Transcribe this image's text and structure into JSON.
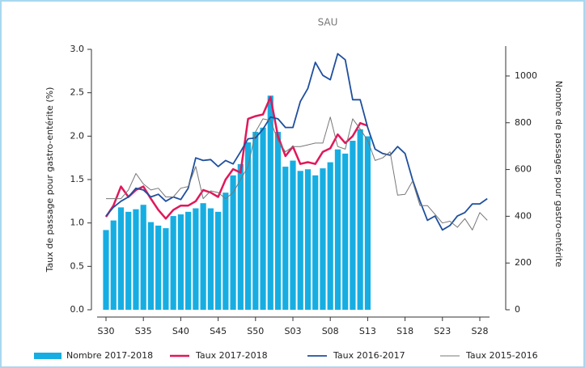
{
  "chart_data": {
    "type": "bar-line",
    "title": "SAU",
    "y_label": "Taux de passage pour gastro-entérite (%)",
    "y2_label": "Nombre de passages pour gastro-entérite",
    "categories": [
      "S30",
      null,
      null,
      null,
      null,
      "S35",
      null,
      null,
      null,
      null,
      "S40",
      null,
      null,
      null,
      null,
      "S45",
      null,
      null,
      null,
      null,
      "S50",
      null,
      null,
      null,
      null,
      "S03",
      null,
      null,
      null,
      null,
      "S08",
      null,
      null,
      null,
      null,
      "S13",
      null,
      null,
      null,
      null,
      "S18",
      null,
      null,
      null,
      null,
      "S23",
      null,
      null,
      null,
      null,
      "S28",
      null
    ],
    "ylim": [
      0,
      3.0
    ],
    "yticks": [
      {
        "value": 0,
        "label": "0.0"
      },
      0.5,
      {
        "value": 1,
        "label": "1.0"
      },
      1.5,
      {
        "value": 2,
        "label": "2.0"
      },
      2.5,
      {
        "value": 3,
        "label": "3.0"
      }
    ],
    "y2lim": [
      0,
      1114
    ],
    "y2ticks": [
      0,
      200,
      400,
      600,
      800,
      1000
    ],
    "series": [
      {
        "name": "Nombre 2017-2018",
        "type": "bar",
        "axis": "y2",
        "color": "#16aee2",
        "values": [
          341,
          382,
          438,
          419,
          430,
          449,
          375,
          360,
          349,
          401,
          408,
          419,
          434,
          456,
          434,
          419,
          501,
          575,
          623,
          716,
          761,
          779,
          916,
          761,
          612,
          638,
          594,
          601,
          575,
          605,
          631,
          686,
          668,
          723,
          772,
          742,
          null,
          null,
          null,
          null,
          null,
          null,
          null,
          null,
          null,
          null,
          null,
          null,
          null,
          null,
          null,
          null
        ]
      },
      {
        "name": "Taux 2017-2018",
        "type": "line",
        "color": "#e0185a",
        "width": 2.5,
        "values": [
          1.07,
          1.2,
          1.42,
          1.3,
          1.38,
          1.42,
          1.28,
          1.15,
          1.05,
          1.15,
          1.2,
          1.2,
          1.25,
          1.38,
          1.35,
          1.3,
          1.5,
          1.62,
          1.58,
          2.2,
          2.23,
          2.25,
          2.45,
          2.0,
          1.77,
          1.88,
          1.68,
          1.7,
          1.68,
          1.82,
          1.86,
          2.02,
          1.92,
          2.0,
          2.15,
          2.12,
          null,
          null,
          null,
          null,
          null,
          null,
          null,
          null,
          null,
          null,
          null,
          null,
          null,
          null,
          null,
          null
        ]
      },
      {
        "name": "Taux 2016-2017",
        "type": "line",
        "color": "#1f4f9e",
        "width": 1.8,
        "values": [
          1.08,
          1.18,
          1.25,
          1.3,
          1.4,
          1.38,
          1.3,
          1.33,
          1.25,
          1.3,
          1.27,
          1.4,
          1.75,
          1.72,
          1.73,
          1.65,
          1.72,
          1.68,
          1.82,
          1.97,
          1.98,
          2.08,
          2.22,
          2.2,
          2.1,
          2.1,
          2.4,
          2.55,
          2.85,
          2.7,
          2.65,
          2.95,
          2.88,
          2.42,
          2.42,
          2.1,
          1.85,
          1.8,
          1.78,
          1.88,
          1.8,
          1.5,
          1.25,
          1.03,
          1.08,
          0.92,
          0.97,
          1.08,
          1.12,
          1.22,
          1.22,
          1.28
        ]
      },
      {
        "name": "Taux 2015-2016",
        "type": "line",
        "color": "#777777",
        "width": 1,
        "values": [
          1.28,
          1.28,
          1.28,
          1.38,
          1.57,
          1.45,
          1.38,
          1.4,
          1.3,
          1.3,
          1.4,
          1.42,
          1.65,
          1.28,
          1.37,
          1.35,
          1.28,
          1.35,
          1.5,
          1.65,
          2.05,
          2.2,
          2.18,
          1.95,
          1.82,
          1.88,
          1.88,
          1.9,
          1.92,
          1.92,
          2.22,
          1.88,
          1.85,
          2.2,
          2.08,
          1.95,
          1.72,
          1.75,
          1.82,
          1.32,
          1.33,
          1.48,
          1.2,
          1.2,
          1.1,
          1.0,
          1.02,
          0.95,
          1.05,
          0.92,
          1.12,
          1.03
        ]
      }
    ]
  }
}
